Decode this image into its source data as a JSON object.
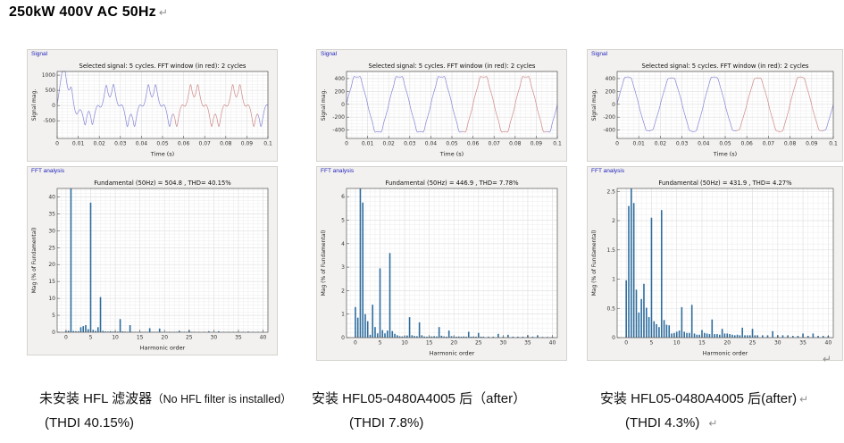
{
  "page": {
    "title": "250kW 400V AC 50Hz",
    "return_mark": "↵"
  },
  "panels": [
    {
      "signal_group_label": "Signal",
      "fft_group_label": "FFT analysis",
      "caption_line1_main": "未安装 HFL 滤波器",
      "caption_line1_sub": "（No HFL filter is installed）",
      "caption_line1_mark": "",
      "caption_line2": "(THDI 40.15%)",
      "caption_line2_mark": ""
    },
    {
      "signal_group_label": "Signal",
      "fft_group_label": "FFT analysis",
      "caption_line1_main": "安装 HFL05-0480A4005 后（after）",
      "caption_line1_sub": "",
      "caption_line1_mark": "",
      "caption_line2": "(THDI 7.8%)",
      "caption_line2_mark": ""
    },
    {
      "signal_group_label": "Signal",
      "fft_group_label": "FFT analysis",
      "caption_line1_main": "安装 HFL05-0480A4005 后(after)",
      "caption_line1_sub": "",
      "caption_line1_mark": "↵",
      "caption_line2": "(THDI 4.3%)",
      "caption_line2_mark": "↵"
    }
  ],
  "chart_data": [
    {
      "type": "line",
      "panel": 1,
      "role": "signal",
      "title": "Selected signal: 5 cycles. FFT window (in red): 2 cycles",
      "xlabel": "Time (s)",
      "ylabel": "Signal mag.",
      "xlim": [
        0,
        0.1
      ],
      "ylim": [
        -1080,
        1120
      ],
      "x_ticks": [
        0,
        0.01,
        0.02,
        0.03,
        0.04,
        0.05,
        0.06,
        0.07,
        0.08,
        0.09,
        0.1
      ],
      "y_ticks": [
        -500,
        0,
        500,
        1000
      ],
      "grid": [
        0.0025,
        100
      ],
      "fundamental_hz": 50,
      "fundamental_peak": 504.8,
      "phase_deg": 0,
      "harmonics": [
        [
          5,
          0.383,
          180
        ],
        [
          7,
          0.104,
          0
        ],
        [
          11,
          0.039,
          180
        ],
        [
          13,
          0.021,
          0
        ],
        [
          17,
          0.012,
          180
        ],
        [
          19,
          0.011,
          0
        ]
      ],
      "transient": {
        "amp": 1200,
        "tau": 0.006,
        "freq": 80
      },
      "fft_window_s": [
        0.055,
        0.095
      ],
      "line_color": "#8585d8",
      "window_color": "#d08888"
    },
    {
      "type": "bar",
      "panel": 1,
      "role": "fft",
      "title": "Fundamental (50Hz) = 504.8 , THD= 40.15%",
      "xlabel": "Harmonic order",
      "ylabel": "Mag (% of Fundamental)",
      "xlim": [
        -1.8,
        41
      ],
      "ylim": [
        0,
        42.5
      ],
      "x_ticks": [
        0,
        5,
        10,
        15,
        20,
        25,
        30,
        35,
        40
      ],
      "y_ticks": [
        0,
        5,
        10,
        15,
        20,
        25,
        30,
        35,
        40
      ],
      "grid": [
        1,
        1
      ],
      "bar_color": "#2e6d9e",
      "bars": [
        [
          0,
          0.4
        ],
        [
          0.5,
          0.45
        ],
        [
          1,
          100
        ],
        [
          1.5,
          0.4
        ],
        [
          2,
          0.3
        ],
        [
          2.5,
          0.3
        ],
        [
          3,
          1.5
        ],
        [
          3.5,
          1.8
        ],
        [
          4,
          2.1
        ],
        [
          4.5,
          0.9
        ],
        [
          5,
          38.3
        ],
        [
          5.5,
          0.7
        ],
        [
          6,
          0.4
        ],
        [
          6.5,
          1.5
        ],
        [
          7,
          10.4
        ],
        [
          7.5,
          0.4
        ],
        [
          8,
          0.25
        ],
        [
          8.5,
          0.2
        ],
        [
          9,
          0.3
        ],
        [
          9.5,
          0.2
        ],
        [
          10,
          0.25
        ],
        [
          10.5,
          0.2
        ],
        [
          11,
          3.9
        ],
        [
          11.5,
          0.25
        ],
        [
          12,
          0.2
        ],
        [
          12.5,
          0.15
        ],
        [
          13,
          2.1
        ],
        [
          13.5,
          0.15
        ],
        [
          14,
          0.12
        ],
        [
          14.5,
          0.1
        ],
        [
          15,
          0.18
        ],
        [
          15.5,
          0.1
        ],
        [
          16,
          0.12
        ],
        [
          16.5,
          0.1
        ],
        [
          17,
          1.2
        ],
        [
          17.5,
          0.12
        ],
        [
          18,
          0.1
        ],
        [
          18.5,
          0.1
        ],
        [
          19,
          1.1
        ],
        [
          19.5,
          0.1
        ],
        [
          20,
          0.12
        ],
        [
          20.5,
          0.1
        ],
        [
          21,
          0.15
        ],
        [
          21.5,
          0.1
        ],
        [
          22,
          0.1
        ],
        [
          22.5,
          0.08
        ],
        [
          23,
          0.45
        ],
        [
          23.5,
          0.08
        ],
        [
          24,
          0.1
        ],
        [
          24.5,
          0.08
        ],
        [
          25,
          0.6
        ],
        [
          25.5,
          0.08
        ],
        [
          26,
          0.08
        ],
        [
          27,
          0.1
        ],
        [
          28,
          0.08
        ],
        [
          29,
          0.3
        ],
        [
          30,
          0.08
        ],
        [
          31,
          0.3
        ],
        [
          32,
          0.08
        ],
        [
          33,
          0.1
        ],
        [
          34,
          0.08
        ],
        [
          35,
          0.15
        ],
        [
          36,
          0.08
        ],
        [
          37,
          0.2
        ],
        [
          38,
          0.08
        ],
        [
          39,
          0.08
        ],
        [
          40,
          0.06
        ]
      ]
    },
    {
      "type": "line",
      "panel": 2,
      "role": "signal",
      "title": "Selected signal: 5 cycles. FFT window (in red): 2 cycles",
      "xlabel": "Time (s)",
      "ylabel": "Signal mag.",
      "xlim": [
        0,
        0.1
      ],
      "ylim": [
        -530,
        510
      ],
      "x_ticks": [
        0,
        0.01,
        0.02,
        0.03,
        0.04,
        0.05,
        0.06,
        0.07,
        0.08,
        0.09,
        0.1
      ],
      "y_ticks": [
        -400,
        -200,
        0,
        200,
        400
      ],
      "grid": [
        0.0025,
        50
      ],
      "fundamental_hz": 50,
      "fundamental_peak": 446.9,
      "phase_deg": 0,
      "harmonics": [
        [
          5,
          0.0295,
          180
        ],
        [
          7,
          0.036,
          0
        ],
        [
          11,
          0.0087,
          180
        ],
        [
          13,
          0.0065,
          0
        ]
      ],
      "transient": {
        "amp": 0,
        "tau": 1,
        "freq": 0
      },
      "fft_window_s": [
        0.055,
        0.095
      ],
      "line_color": "#8585d8",
      "window_color": "#d08888"
    },
    {
      "type": "bar",
      "panel": 2,
      "role": "fft",
      "title": "Fundamental (50Hz) = 446.9 , THD= 7.78%",
      "xlabel": "Harmonic order",
      "ylabel": "Mag (% of Fundamental)",
      "xlim": [
        -1.8,
        41
      ],
      "ylim": [
        0,
        6.35
      ],
      "x_ticks": [
        0,
        5,
        10,
        15,
        20,
        25,
        30,
        35,
        40
      ],
      "y_ticks": [
        0,
        1,
        2,
        3,
        4,
        5,
        6
      ],
      "grid": [
        1,
        0.2
      ],
      "bar_color": "#2e6d9e",
      "bars": [
        [
          0,
          1.3
        ],
        [
          0.5,
          0.85
        ],
        [
          1,
          100
        ],
        [
          1.5,
          5.75
        ],
        [
          2,
          1.0
        ],
        [
          2.5,
          0.7
        ],
        [
          3,
          0.12
        ],
        [
          3.5,
          1.4
        ],
        [
          4,
          0.45
        ],
        [
          4.5,
          0.18
        ],
        [
          5,
          2.95
        ],
        [
          5.5,
          0.32
        ],
        [
          6,
          0.18
        ],
        [
          6.5,
          0.3
        ],
        [
          7,
          3.6
        ],
        [
          7.5,
          0.28
        ],
        [
          8,
          0.16
        ],
        [
          8.5,
          0.1
        ],
        [
          9,
          0.06
        ],
        [
          9.5,
          0.05
        ],
        [
          10,
          0.06
        ],
        [
          10.5,
          0.09
        ],
        [
          11,
          0.87
        ],
        [
          11.5,
          0.1
        ],
        [
          12,
          0.07
        ],
        [
          12.5,
          0.06
        ],
        [
          13,
          0.65
        ],
        [
          13.5,
          0.1
        ],
        [
          14,
          0.05
        ],
        [
          14.5,
          0.04
        ],
        [
          15,
          0.05
        ],
        [
          15.5,
          0.05
        ],
        [
          16,
          0.06
        ],
        [
          16.5,
          0.05
        ],
        [
          17,
          0.45
        ],
        [
          17.5,
          0.08
        ],
        [
          18,
          0.05
        ],
        [
          18.5,
          0.04
        ],
        [
          19,
          0.3
        ],
        [
          19.5,
          0.06
        ],
        [
          20,
          0.05
        ],
        [
          20.5,
          0.04
        ],
        [
          21,
          0.05
        ],
        [
          21.5,
          0.04
        ],
        [
          22,
          0.05
        ],
        [
          22.5,
          0.04
        ],
        [
          23,
          0.25
        ],
        [
          23.5,
          0.04
        ],
        [
          24,
          0.05
        ],
        [
          24.5,
          0.04
        ],
        [
          25,
          0.2
        ],
        [
          25.5,
          0.04
        ],
        [
          26,
          0.04
        ],
        [
          27,
          0.04
        ],
        [
          28,
          0.04
        ],
        [
          29,
          0.16
        ],
        [
          30,
          0.04
        ],
        [
          31,
          0.12
        ],
        [
          32,
          0.04
        ],
        [
          33,
          0.04
        ],
        [
          34,
          0.04
        ],
        [
          35,
          0.1
        ],
        [
          36,
          0.04
        ],
        [
          37,
          0.1
        ],
        [
          38,
          0.03
        ],
        [
          39,
          0.03
        ],
        [
          40,
          0.03
        ]
      ]
    },
    {
      "type": "line",
      "panel": 3,
      "role": "signal",
      "title": "Selected signal: 5 cycles. FFT window (in red): 2 cycles",
      "xlabel": "Time (s)",
      "ylabel": "Signal mag.",
      "xlim": [
        0,
        0.1
      ],
      "ylim": [
        -530,
        510
      ],
      "x_ticks": [
        0,
        0.01,
        0.02,
        0.03,
        0.04,
        0.05,
        0.06,
        0.07,
        0.08,
        0.09,
        0.1
      ],
      "y_ticks": [
        -400,
        -200,
        0,
        200,
        400
      ],
      "grid": [
        0.0025,
        50
      ],
      "fundamental_hz": 50,
      "fundamental_peak": 431.9,
      "phase_deg": 0,
      "harmonics": [
        [
          1.5,
          0.023,
          0
        ],
        [
          5,
          0.0205,
          180
        ],
        [
          7,
          0.0218,
          0
        ],
        [
          11,
          0.0052,
          180
        ],
        [
          13,
          0.0056,
          0
        ]
      ],
      "transient": {
        "amp": 0,
        "tau": 1,
        "freq": 0
      },
      "fft_window_s": [
        0.055,
        0.095
      ],
      "line_color": "#8585d8",
      "window_color": "#d08888"
    },
    {
      "type": "bar",
      "panel": 3,
      "role": "fft",
      "title": "Fundamental (50Hz) = 431.9 , THD= 4.27%",
      "xlabel": "Harmonic order",
      "ylabel": "Mag (% of Fundamental)",
      "xlim": [
        -1.8,
        41
      ],
      "ylim": [
        0,
        2.55
      ],
      "x_ticks": [
        0,
        5,
        10,
        15,
        20,
        25,
        30,
        35,
        40
      ],
      "y_ticks": [
        0,
        0.5,
        1,
        1.5,
        2,
        2.5
      ],
      "grid": [
        1,
        0.1
      ],
      "bar_color": "#2e6d9e",
      "bars": [
        [
          0,
          0.98
        ],
        [
          0.5,
          2.25
        ],
        [
          1,
          100
        ],
        [
          1.5,
          2.3
        ],
        [
          2,
          0.82
        ],
        [
          2.5,
          0.43
        ],
        [
          3,
          0.66
        ],
        [
          3.5,
          0.92
        ],
        [
          4,
          0.51
        ],
        [
          4.5,
          0.35
        ],
        [
          5,
          2.05
        ],
        [
          5.5,
          0.28
        ],
        [
          6,
          0.23
        ],
        [
          6.5,
          0.18
        ],
        [
          7,
          2.18
        ],
        [
          7.5,
          0.3
        ],
        [
          8,
          0.22
        ],
        [
          8.5,
          0.21
        ],
        [
          9,
          0.07
        ],
        [
          9.5,
          0.08
        ],
        [
          10,
          0.1
        ],
        [
          10.5,
          0.12
        ],
        [
          11,
          0.52
        ],
        [
          11.5,
          0.1
        ],
        [
          12,
          0.08
        ],
        [
          12.5,
          0.08
        ],
        [
          13,
          0.56
        ],
        [
          13.5,
          0.07
        ],
        [
          14,
          0.05
        ],
        [
          14.5,
          0.05
        ],
        [
          15,
          0.13
        ],
        [
          15.5,
          0.08
        ],
        [
          16,
          0.07
        ],
        [
          16.5,
          0.06
        ],
        [
          17,
          0.31
        ],
        [
          17.5,
          0.06
        ],
        [
          18,
          0.06
        ],
        [
          18.5,
          0.05
        ],
        [
          19,
          0.15
        ],
        [
          19.5,
          0.07
        ],
        [
          20,
          0.07
        ],
        [
          20.5,
          0.06
        ],
        [
          21,
          0.05
        ],
        [
          21.5,
          0.04
        ],
        [
          22,
          0.05
        ],
        [
          22.5,
          0.04
        ],
        [
          23,
          0.17
        ],
        [
          23.5,
          0.04
        ],
        [
          24,
          0.04
        ],
        [
          24.5,
          0.04
        ],
        [
          25,
          0.15
        ],
        [
          25.5,
          0.04
        ],
        [
          26,
          0.04
        ],
        [
          27,
          0.04
        ],
        [
          28,
          0.04
        ],
        [
          29,
          0.11
        ],
        [
          30,
          0.04
        ],
        [
          31,
          0.04
        ],
        [
          32,
          0.04
        ],
        [
          33,
          0.03
        ],
        [
          34,
          0.03
        ],
        [
          35,
          0.07
        ],
        [
          36,
          0.03
        ],
        [
          37,
          0.07
        ],
        [
          38,
          0.03
        ],
        [
          39,
          0.03
        ],
        [
          40,
          0.03
        ]
      ]
    }
  ]
}
